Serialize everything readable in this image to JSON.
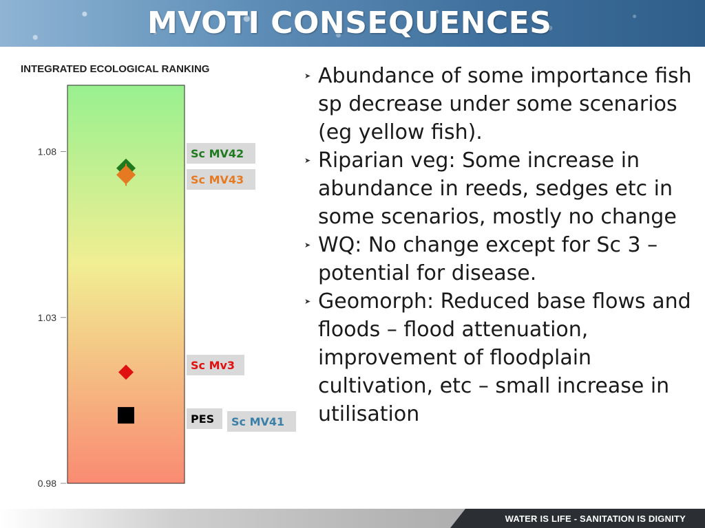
{
  "slide": {
    "title": "MVOTI CONSEQUENCES",
    "footer_tagline": "WATER IS LIFE - SANITATION IS DIGNITY"
  },
  "bullets": [
    {
      "text": "Abundance of some importance fish sp decrease under some scenarios (eg yellow fish)."
    },
    {
      "text": "Riparian veg: Some increase in abundance in reeds, sedges etc in some scenarios, mostly no change"
    },
    {
      "text": "WQ: No change except for Sc 3 – potential for disease."
    },
    {
      "text": "Geomorph:  Reduced base flows and floods – flood attenuation, improvement of floodplain cultivation, etc – small increase in utilisation"
    }
  ],
  "chart_data": {
    "type": "scatter",
    "title": "INTEGRATED ECOLOGICAL RANKING",
    "ylim": [
      0.98,
      1.1
    ],
    "yticks": [
      0.98,
      1.03,
      1.08
    ],
    "ytick_labels": [
      "0.98",
      "1.03",
      "1.08"
    ],
    "grid": false,
    "background": "vertical gradient from green (top) through yellow to red (bottom)",
    "points": [
      {
        "label": "Sc MV42",
        "y": 1.075,
        "marker": "diamond",
        "color": "#1f7a1f",
        "label_color": "#1f7a1f"
      },
      {
        "label": "Sc MV43",
        "y": 1.073,
        "marker": "diamond",
        "color": "#e67a22",
        "label_color": "#e67a22"
      },
      {
        "label": "Sc Mv3",
        "y": 1.0135,
        "marker": "diamond",
        "color": "#e01010",
        "label_color": "#e01010"
      },
      {
        "label": "PES",
        "y": 1.0005,
        "marker": "square",
        "color": "#000000",
        "label_color": "#000000"
      },
      {
        "label": "Sc MV41",
        "y": 1.0005,
        "marker": "none",
        "color": "#3a7fa8",
        "label_color": "#3a7fa8"
      }
    ]
  }
}
